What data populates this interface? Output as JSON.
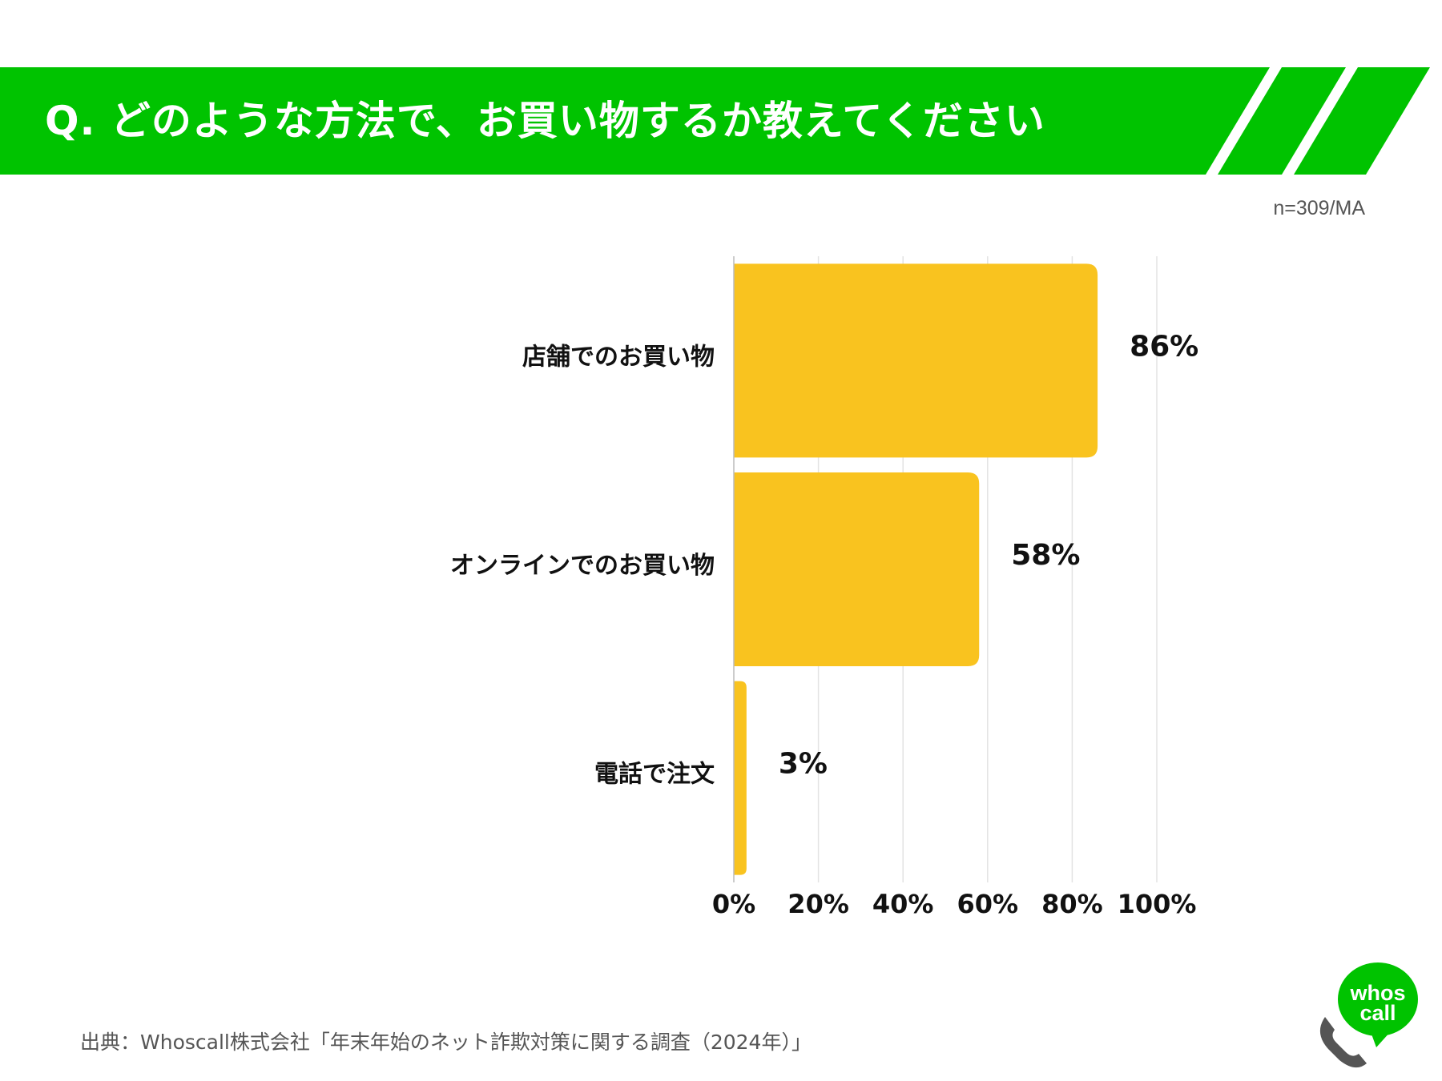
{
  "header": {
    "title": "Q. どのような方法で、お買い物するか教えてください",
    "accent_color": "#00C300"
  },
  "sample_note": "n=309/MA",
  "chart_data": {
    "type": "bar",
    "orientation": "horizontal",
    "categories": [
      "店舗でのお買い物",
      "オンラインでのお買い物",
      "電話で注文"
    ],
    "values": [
      86,
      58,
      3
    ],
    "value_labels": [
      "86%",
      "58%",
      "3%"
    ],
    "xlim": [
      0,
      100
    ],
    "x_ticks": [
      0,
      20,
      40,
      60,
      80,
      100
    ],
    "x_tick_labels": [
      "0%",
      "20%",
      "40%",
      "60%",
      "80%",
      "100%"
    ],
    "bar_color": "#F9C31F",
    "grid": true
  },
  "footer": {
    "source": "出典：Whoscall株式会社「年末年始のネット詐欺対策に関する調査（2024年）」"
  },
  "logo": {
    "line1": "whos",
    "line2": "call",
    "color": "#00C300"
  }
}
